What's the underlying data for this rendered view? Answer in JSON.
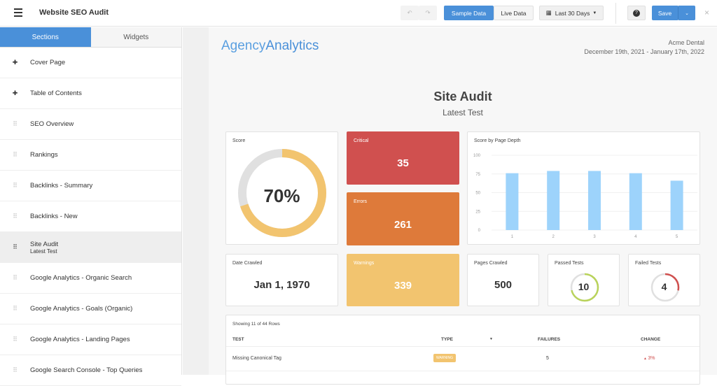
{
  "header": {
    "title": "Website SEO Audit",
    "sample_label": "Sample Data",
    "live_label": "Live Data",
    "date_range": "Last 30 Days",
    "save_label": "Save"
  },
  "sidebar": {
    "tabs": [
      "Sections",
      "Widgets"
    ],
    "items": [
      {
        "label": "Cover Page",
        "icon": "pin"
      },
      {
        "label": "Table of Contents",
        "icon": "pin"
      },
      {
        "label": "SEO Overview",
        "icon": "drag"
      },
      {
        "label": "Rankings",
        "icon": "drag"
      },
      {
        "label": "Backlinks - Summary",
        "icon": "drag"
      },
      {
        "label": "Backlinks - New",
        "icon": "drag"
      },
      {
        "label": "Site Audit",
        "sub": "Latest Test",
        "icon": "drag"
      },
      {
        "label": "Google Analytics - Organic Search",
        "icon": "drag"
      },
      {
        "label": "Google Analytics - Goals (Organic)",
        "icon": "drag"
      },
      {
        "label": "Google Analytics - Landing Pages",
        "icon": "drag"
      },
      {
        "label": "Google Search Console - Top Queries",
        "icon": "drag"
      }
    ]
  },
  "report": {
    "logo_a": "Agency",
    "logo_b": "Analytics",
    "client": "Acme Dental",
    "period": "December 19th, 2021 - January 17th, 2022",
    "title": "Site Audit",
    "subtitle": "Latest Test"
  },
  "widgets": {
    "score": {
      "label": "Score",
      "value": "70%",
      "fraction": 0.7
    },
    "critical": {
      "label": "Critical",
      "value": "35"
    },
    "errors": {
      "label": "Errors",
      "value": "261"
    },
    "warnings": {
      "label": "Warnings",
      "value": "339"
    },
    "date": {
      "label": "Date Crawled",
      "value": "Jan 1, 1970"
    },
    "pages": {
      "label": "Pages Crawled",
      "value": "500"
    },
    "passed": {
      "label": "Passed Tests",
      "value": "10",
      "fraction": 0.714
    },
    "failed": {
      "label": "Failed Tests",
      "value": "4",
      "fraction": 0.286
    }
  },
  "chart_data": {
    "type": "bar",
    "title": "Score by Page Depth",
    "categories": [
      "1",
      "2",
      "3",
      "4",
      "5"
    ],
    "values": [
      76,
      79,
      79,
      76,
      66
    ],
    "yticks": [
      "0",
      "25",
      "50",
      "75",
      "100"
    ],
    "ylim": [
      0,
      100
    ]
  },
  "table": {
    "summary": "Showing 11 of 44 Rows",
    "headers": [
      "TEST",
      "TYPE",
      "FAILURES",
      "CHANGE"
    ],
    "rows": [
      {
        "test": "Missing Canonical Tag",
        "type": "WARNING",
        "failures": "5",
        "change": "3%"
      }
    ]
  },
  "colors": {
    "primary": "#4a90d9",
    "critical": "#d0504f",
    "errors": "#de7a3a",
    "warnings": "#f2c46f",
    "bar": "#9dd3fb"
  }
}
